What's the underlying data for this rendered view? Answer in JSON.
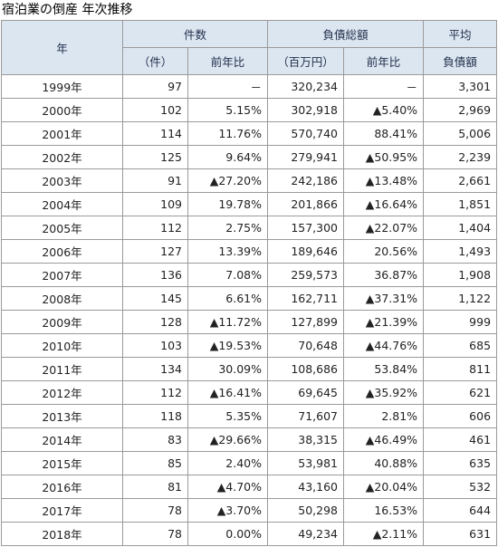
{
  "title": "宿泊業の倒産 年次推移",
  "table": {
    "header": {
      "year": "年",
      "count": "件数",
      "debt": "負債総額",
      "avg_top": "平均",
      "count_unit": "（件）",
      "count_yoy": "前年比",
      "debt_unit": "（百万円）",
      "debt_yoy": "前年比",
      "avg_bottom": "負債額"
    },
    "rows": [
      [
        "1999年",
        "97",
        "－",
        "320,234",
        "－",
        "3,301"
      ],
      [
        "2000年",
        "102",
        "5.15%",
        "302,918",
        "▲5.40%",
        "2,969"
      ],
      [
        "2001年",
        "114",
        "11.76%",
        "570,740",
        "88.41%",
        "5,006"
      ],
      [
        "2002年",
        "125",
        "9.64%",
        "279,941",
        "▲50.95%",
        "2,239"
      ],
      [
        "2003年",
        "91",
        "▲27.20%",
        "242,186",
        "▲13.48%",
        "2,661"
      ],
      [
        "2004年",
        "109",
        "19.78%",
        "201,866",
        "▲16.64%",
        "1,851"
      ],
      [
        "2005年",
        "112",
        "2.75%",
        "157,300",
        "▲22.07%",
        "1,404"
      ],
      [
        "2006年",
        "127",
        "13.39%",
        "189,646",
        "20.56%",
        "1,493"
      ],
      [
        "2007年",
        "136",
        "7.08%",
        "259,573",
        "36.87%",
        "1,908"
      ],
      [
        "2008年",
        "145",
        "6.61%",
        "162,711",
        "▲37.31%",
        "1,122"
      ],
      [
        "2009年",
        "128",
        "▲11.72%",
        "127,899",
        "▲21.39%",
        "999"
      ],
      [
        "2010年",
        "103",
        "▲19.53%",
        "70,648",
        "▲44.76%",
        "685"
      ],
      [
        "2011年",
        "134",
        "30.09%",
        "108,686",
        "53.84%",
        "811"
      ],
      [
        "2012年",
        "112",
        "▲16.41%",
        "69,645",
        "▲35.92%",
        "621"
      ],
      [
        "2013年",
        "118",
        "5.35%",
        "71,607",
        "2.81%",
        "606"
      ],
      [
        "2014年",
        "83",
        "▲29.66%",
        "38,315",
        "▲46.49%",
        "461"
      ],
      [
        "2015年",
        "85",
        "2.40%",
        "53,981",
        "40.88%",
        "635"
      ],
      [
        "2016年",
        "81",
        "▲4.70%",
        "43,160",
        "▲20.04%",
        "532"
      ],
      [
        "2017年",
        "78",
        "▲3.70%",
        "50,298",
        "16.53%",
        "644"
      ],
      [
        "2018年",
        "78",
        "0.00%",
        "49,234",
        "▲2.11%",
        "631"
      ]
    ]
  }
}
